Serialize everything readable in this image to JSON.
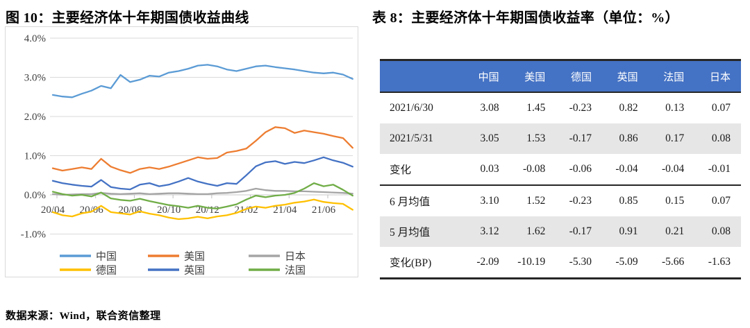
{
  "page": {
    "figure_title": "图 10：主要经济体十年期国债收益曲线",
    "table_title": "表 8：主要经济体十年期国债收益率（单位：%）",
    "source_note": "数据来源：Wind，联合资信整理"
  },
  "chart_data": [
    {
      "type": "line",
      "title": "主要经济体十年期国债收益曲线",
      "ylim": [
        -1.0,
        4.0
      ],
      "y_tick_values": [
        4,
        3,
        2,
        1,
        0,
        -1
      ],
      "y_tick_labels": [
        "4.0%",
        "3.0%",
        "2.0%",
        "1.0%",
        "0.0%",
        "-1.0%"
      ],
      "x_tick_positions": [
        0,
        2,
        4,
        6,
        8,
        10,
        12,
        14
      ],
      "x_tick_labels": [
        "20/04",
        "20/06",
        "20/08",
        "20/10",
        "20/12",
        "21/02",
        "21/04",
        "21/06"
      ],
      "x_months_since_2020_04": [
        0,
        0.5,
        1,
        1.5,
        2,
        2.5,
        3,
        3.5,
        4,
        4.5,
        5,
        5.5,
        6,
        6.5,
        7,
        7.5,
        8,
        8.5,
        9,
        9.5,
        10,
        10.5,
        11,
        11.5,
        12,
        12.5,
        13,
        13.5,
        14,
        14.5,
        15,
        15.5
      ],
      "grid": true,
      "legend_position": "bottom",
      "legend_columns": 3,
      "series": [
        {
          "key": "china",
          "name": "中国",
          "color": "#5B9BD5",
          "values": [
            2.55,
            2.51,
            2.49,
            2.58,
            2.66,
            2.78,
            2.72,
            3.06,
            2.88,
            2.94,
            3.04,
            3.02,
            3.12,
            3.16,
            3.22,
            3.3,
            3.32,
            3.28,
            3.2,
            3.16,
            3.22,
            3.28,
            3.3,
            3.26,
            3.23,
            3.2,
            3.16,
            3.12,
            3.1,
            3.12,
            3.07,
            2.96
          ]
        },
        {
          "key": "usa",
          "name": "美国",
          "color": "#ED7D31",
          "values": [
            0.68,
            0.62,
            0.66,
            0.7,
            0.66,
            0.92,
            0.72,
            0.63,
            0.56,
            0.66,
            0.7,
            0.66,
            0.72,
            0.8,
            0.88,
            0.96,
            0.92,
            0.94,
            1.08,
            1.12,
            1.18,
            1.38,
            1.6,
            1.73,
            1.7,
            1.58,
            1.64,
            1.6,
            1.56,
            1.5,
            1.45,
            1.2
          ]
        },
        {
          "key": "japan",
          "name": "日本",
          "color": "#A5A5A5",
          "values": [
            0.02,
            0.0,
            0.01,
            0.02,
            0.02,
            0.05,
            0.03,
            0.02,
            0.03,
            0.04,
            0.02,
            0.03,
            0.04,
            0.04,
            0.03,
            0.02,
            0.02,
            0.04,
            0.05,
            0.07,
            0.1,
            0.16,
            0.12,
            0.1,
            0.1,
            0.09,
            0.09,
            0.08,
            0.07,
            0.06,
            0.05,
            0.03
          ]
        },
        {
          "key": "germany",
          "name": "德国",
          "color": "#FFC000",
          "values": [
            -0.44,
            -0.52,
            -0.55,
            -0.47,
            -0.43,
            -0.28,
            -0.44,
            -0.47,
            -0.5,
            -0.42,
            -0.48,
            -0.52,
            -0.58,
            -0.62,
            -0.6,
            -0.56,
            -0.6,
            -0.55,
            -0.52,
            -0.46,
            -0.36,
            -0.3,
            -0.33,
            -0.28,
            -0.25,
            -0.2,
            -0.17,
            -0.12,
            -0.18,
            -0.21,
            -0.23,
            -0.38
          ]
        },
        {
          "key": "uk",
          "name": "英国",
          "color": "#4472C4",
          "values": [
            0.36,
            0.3,
            0.26,
            0.23,
            0.21,
            0.38,
            0.2,
            0.16,
            0.14,
            0.26,
            0.3,
            0.22,
            0.26,
            0.34,
            0.43,
            0.34,
            0.28,
            0.23,
            0.3,
            0.28,
            0.5,
            0.73,
            0.83,
            0.86,
            0.79,
            0.84,
            0.81,
            0.88,
            0.96,
            0.88,
            0.82,
            0.72
          ]
        },
        {
          "key": "france",
          "name": "法国",
          "color": "#70AD47",
          "values": [
            0.08,
            0.02,
            -0.02,
            0.0,
            -0.04,
            0.06,
            -0.09,
            -0.13,
            -0.15,
            -0.1,
            -0.16,
            -0.21,
            -0.26,
            -0.29,
            -0.33,
            -0.28,
            -0.33,
            -0.35,
            -0.3,
            -0.24,
            -0.12,
            -0.02,
            -0.06,
            -0.02,
            0.0,
            0.05,
            0.16,
            0.3,
            0.22,
            0.26,
            0.13,
            -0.02
          ]
        }
      ]
    },
    {
      "type": "table",
      "title": "表 8：主要经济体十年期国债收益率（单位：%）",
      "columns": [
        "",
        "中国",
        "美国",
        "德国",
        "英国",
        "法国",
        "日本"
      ],
      "rows": [
        {
          "label": "2021/6/30",
          "values": [
            "3.08",
            "1.45",
            "-0.23",
            "0.82",
            "0.13",
            "0.07"
          ]
        },
        {
          "label": "2021/5/31",
          "values": [
            "3.05",
            "1.53",
            "-0.17",
            "0.86",
            "0.17",
            "0.08"
          ]
        },
        {
          "label": "变化",
          "values": [
            "0.03",
            "-0.08",
            "-0.06",
            "-0.04",
            "-0.04",
            "-0.01"
          ]
        },
        {
          "label": "6 月均值",
          "values": [
            "3.10",
            "1.52",
            "-0.23",
            "0.85",
            "0.15",
            "0.07"
          ]
        },
        {
          "label": "5 月均值",
          "values": [
            "3.12",
            "1.62",
            "-0.17",
            "0.91",
            "0.21",
            "0.08"
          ]
        },
        {
          "label": "变化(BP)",
          "values": [
            "-2.09",
            "-10.19",
            "-5.30",
            "-5.09",
            "-5.66",
            "-1.63"
          ]
        }
      ],
      "shaded_row_indexes": [
        1,
        4
      ],
      "separator_above_row_index": 3,
      "header_bg": "#4472C4",
      "header_text_color": "#FFFFFF",
      "shaded_bg": "#E7E6E6"
    }
  ]
}
